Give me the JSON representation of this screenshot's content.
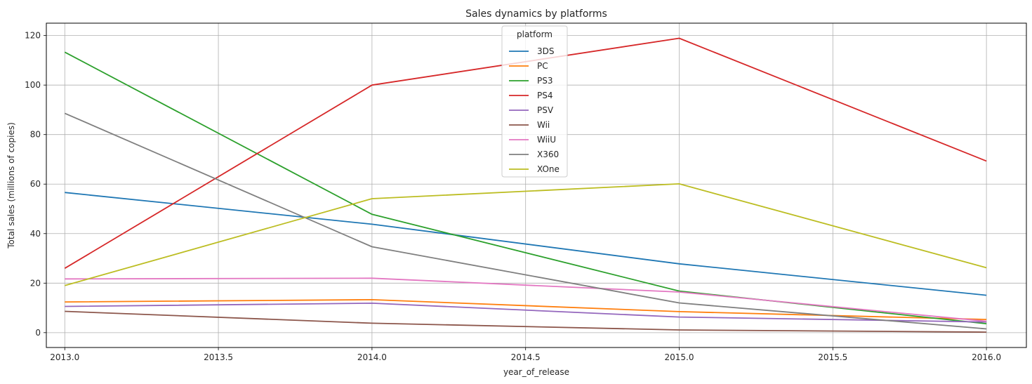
{
  "chart_data": {
    "type": "line",
    "title": "Sales dynamics by platforms",
    "xlabel": "year_of_release",
    "ylabel": "Total sales (millions of copies)",
    "x": [
      2013,
      2014,
      2015,
      2016
    ],
    "xlim": [
      2012.94,
      2016.13
    ],
    "ylim": [
      -6,
      125
    ],
    "xticks": [
      "2013.0",
      "2013.5",
      "2014.0",
      "2014.5",
      "2015.0",
      "2015.5",
      "2016.0"
    ],
    "xtick_values": [
      2013.0,
      2013.5,
      2014.0,
      2014.5,
      2015.0,
      2015.5,
      2016.0
    ],
    "yticks": [
      0,
      20,
      40,
      60,
      80,
      100,
      120
    ],
    "grid": true,
    "legend": {
      "title": "platform",
      "placement": "upper center"
    },
    "series": [
      {
        "name": "3DS",
        "color": "#1f77b4",
        "values": [
          56.6,
          43.8,
          27.8,
          15.1
        ]
      },
      {
        "name": "PC",
        "color": "#ff7f0e",
        "values": [
          12.4,
          13.3,
          8.5,
          5.3
        ]
      },
      {
        "name": "PS3",
        "color": "#2ca02c",
        "values": [
          113.3,
          47.8,
          16.8,
          3.6
        ]
      },
      {
        "name": "PS4",
        "color": "#d62728",
        "values": [
          25.99,
          100.0,
          118.9,
          69.3
        ]
      },
      {
        "name": "PSV",
        "color": "#9467bd",
        "values": [
          10.6,
          11.9,
          6.3,
          4.3
        ]
      },
      {
        "name": "Wii",
        "color": "#8c564b",
        "values": [
          8.6,
          3.8,
          1.1,
          0.2
        ]
      },
      {
        "name": "WiiU",
        "color": "#e377c2",
        "values": [
          21.7,
          22.0,
          16.4,
          4.6
        ]
      },
      {
        "name": "X360",
        "color": "#7f7f7f",
        "values": [
          88.6,
          34.7,
          12.0,
          1.5
        ]
      },
      {
        "name": "XOne",
        "color": "#bcbd22",
        "values": [
          19.0,
          54.1,
          60.1,
          26.2
        ]
      }
    ]
  }
}
